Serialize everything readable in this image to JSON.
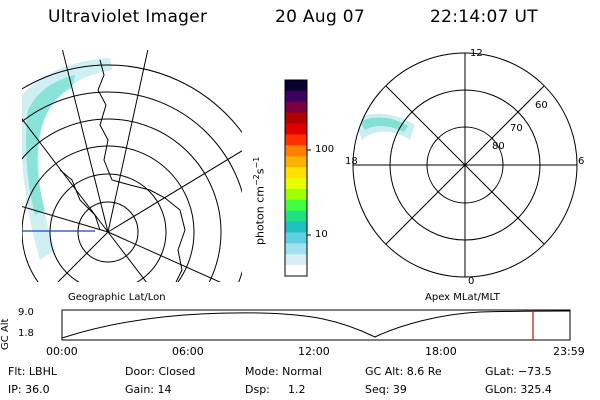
{
  "header": {
    "instrument": "Ultraviolet Imager",
    "date": "20 Aug 07",
    "time": "22:14:07 UT"
  },
  "colorbar": {
    "unit_label": "photon cm",
    "unit_sup1": "−2",
    "unit_mid": "s",
    "unit_sup2": "−1",
    "tick_high": "100",
    "tick_low": "10",
    "colors": [
      "#0a0030",
      "#3a0060",
      "#7a0040",
      "#b00000",
      "#e00000",
      "#ff3000",
      "#ff8000",
      "#ffb000",
      "#ffe000",
      "#e8ff00",
      "#a0ff00",
      "#40ff40",
      "#20e080",
      "#20c0c0",
      "#60d0e0",
      "#a0e0f0",
      "#d8eef4",
      "#ffffff"
    ]
  },
  "geo_map": {
    "label": "Geographic Lat/Lon"
  },
  "polar_map": {
    "label": "Apex MLat/MLT",
    "mlt_top": "12",
    "mlt_left": "18",
    "mlt_right": "6",
    "mlt_bottom": "0",
    "lat_60": "60",
    "lat_70": "70",
    "lat_80": "80"
  },
  "altitude_plot": {
    "ylabel": "GC Alt",
    "ytick_high": "9.0",
    "ytick_low": "1.8",
    "xticks": [
      "00:00",
      "06:00",
      "12:00",
      "18:00",
      "23:59"
    ],
    "marker_color": "#e00000"
  },
  "footer": {
    "filter": "Flt: LBHL",
    "door": "Door: Closed",
    "mode": "Mode: Normal",
    "gc_alt": "GC Alt: 8.6 Re",
    "glat": "GLat: −73.5",
    "ip": "IP: 36.0",
    "gain": "Gain: 14",
    "dsp_label": "Dsp:",
    "dsp_value": "1.2",
    "seq": "Seq: 39",
    "glon": "GLon: 325.4"
  }
}
